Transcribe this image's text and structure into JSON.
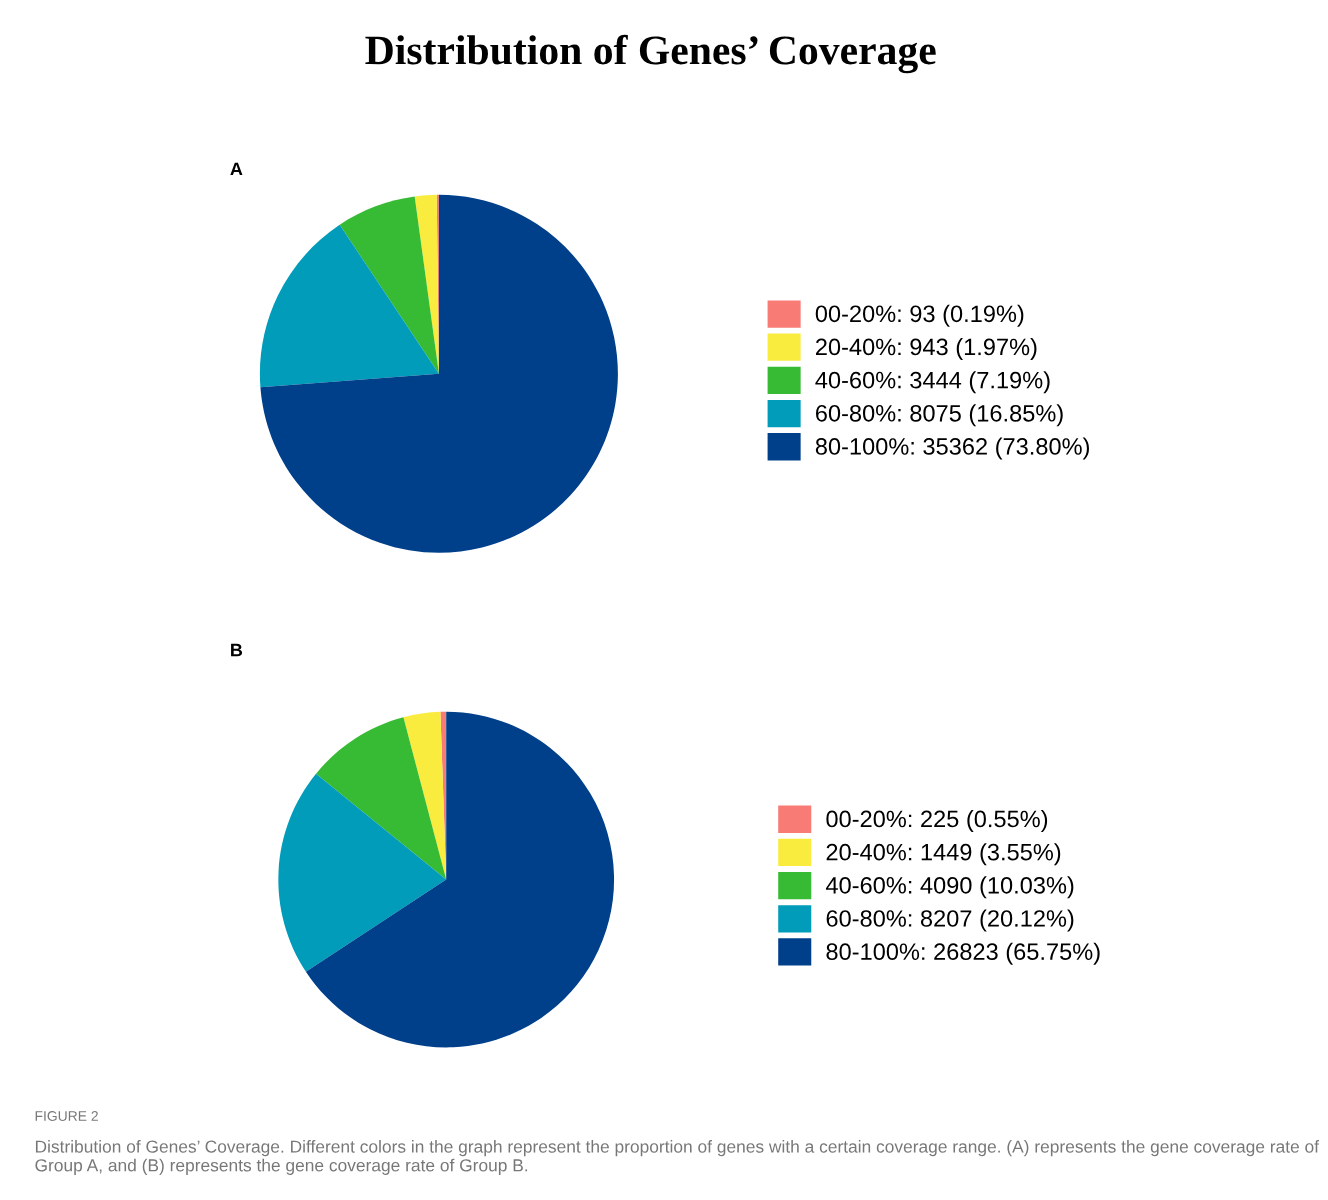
{
  "chart_data": [
    {
      "type": "pie",
      "title": "Distribution of Genes’ Coverage",
      "annotations": [
        "A"
      ],
      "legend": "right",
      "categories": [
        "00-20%: 93 (0.19%)",
        "20-40%: 943 (1.97%)",
        "40-60%: 3444 (7.19%)",
        "60-80%: 8075 (16.85%)",
        "80-100%: 35362 (73.80%)"
      ],
      "values": [
        93,
        943,
        3444,
        8075,
        35362
      ],
      "colors": [
        "#f87b76",
        "#f9ec3e",
        "#38bb34",
        "#009cb9",
        "#003f8a"
      ]
    },
    {
      "type": "pie",
      "annotations": [
        "B",
        "FIGURE 2",
        "Distribution of Genes’ Coverage. Different colors in the graph represent the proportion of genes with a certain coverage range. (A) represents the gene coverage rate of Group A, and (B) represents the gene coverage rate of Group B."
      ],
      "legend": "right",
      "categories": [
        "00-20%: 225 (0.55%)",
        "20-40%: 1449 (3.55%)",
        "40-60%: 4090 (10.03%)",
        "60-80%: 8207 (20.12%)",
        "80-100%: 26823 (65.75%)"
      ],
      "values": [
        225,
        1449,
        4090,
        8207,
        26823
      ],
      "colors": [
        "#f87b76",
        "#f9ec3e",
        "#38bb34",
        "#009cb9",
        "#003f8a"
      ]
    }
  ]
}
